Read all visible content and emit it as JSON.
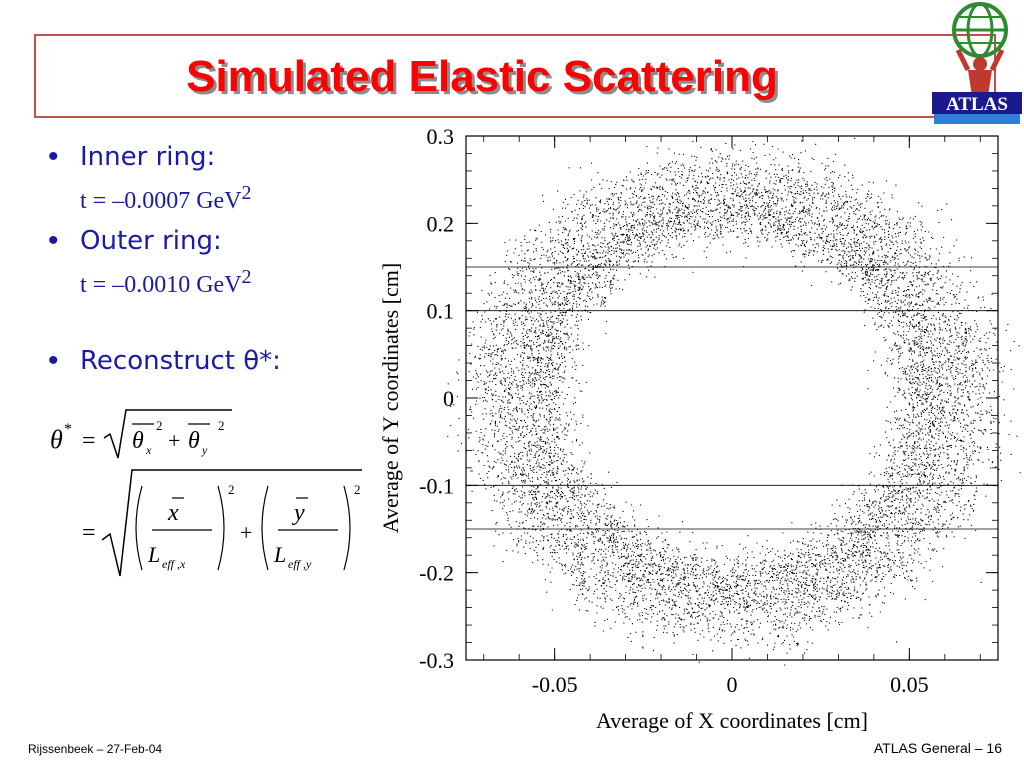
{
  "slide": {
    "title": "Simulated Elastic Scattering",
    "logo_text": "ATLAS",
    "footer_left": "Rijssenbeek – 27-Feb-04",
    "footer_right": "ATLAS General – 16"
  },
  "bullets": [
    {
      "label": "Inner ring:",
      "formula": "t = –0.0007 GeV",
      "sup": "2"
    },
    {
      "label": "Outer ring:",
      "formula": "t = –0.0010 GeV",
      "sup": "2"
    },
    {
      "label": "Reconstruct θ*:"
    }
  ],
  "chart_data": {
    "type": "scatter",
    "xlabel": "Average of X coordinates  [cm]",
    "ylabel": "Average of Y coordinates  [cm]",
    "xlim": [
      -0.075,
      0.075
    ],
    "ylim": [
      -0.3,
      0.3
    ],
    "x_ticks": [
      -0.05,
      0,
      0.05
    ],
    "x_tick_labels": [
      "-0.05",
      "0",
      "0.05"
    ],
    "y_ticks": [
      -0.3,
      -0.2,
      -0.1,
      0,
      0.1,
      0.2,
      0.3
    ],
    "y_tick_labels": [
      "-0.3",
      "-0.2",
      "-0.1",
      "0",
      "0.1",
      "0.2",
      "0.3"
    ],
    "h_lines": [
      0.15,
      0.1,
      -0.1,
      -0.15
    ],
    "series": [
      {
        "center_x": 0.0,
        "center_y": 0.0,
        "radius_x": 0.054,
        "radius_y": 0.21,
        "spread": 0.009
      },
      {
        "center_x": 0.0,
        "center_y": 0.0,
        "radius_x": 0.066,
        "radius_y": 0.25,
        "spread": 0.011
      }
    ]
  }
}
